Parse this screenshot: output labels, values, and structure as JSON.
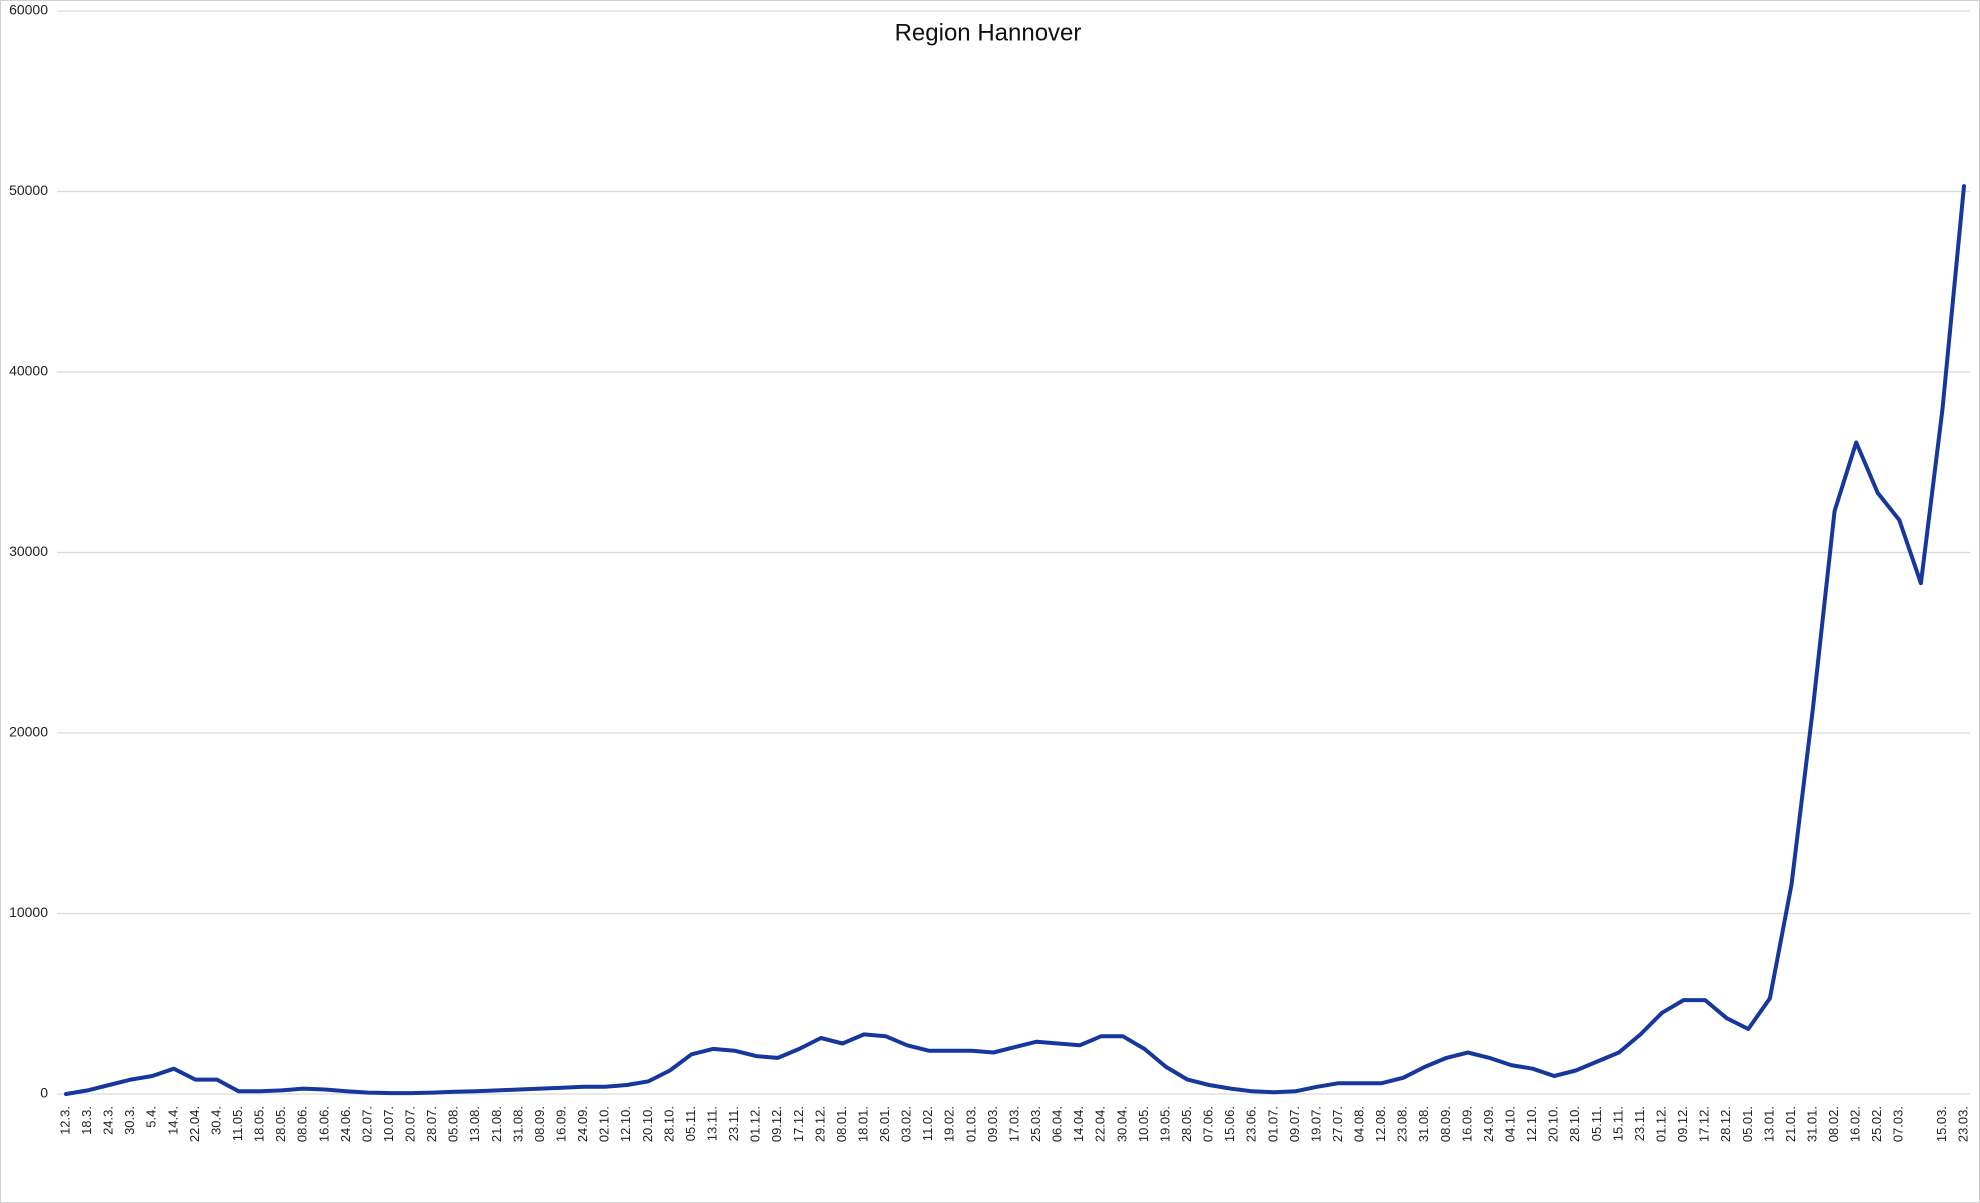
{
  "chart_data": {
    "type": "line",
    "title": "Region Hannover",
    "categories": [
      "12.3.",
      "18.3.",
      "24.3.",
      "30.3.",
      "5.4.",
      "14.4.",
      "22.04.",
      "30.4.",
      "11.05.",
      "18.05.",
      "28.05.",
      "08.06.",
      "16.06.",
      "24.06.",
      "02.07.",
      "10.07.",
      "20.07.",
      "28.07.",
      "05.08.",
      "13.08.",
      "21.08.",
      "31.08.",
      "08.09.",
      "16.09.",
      "24.09.",
      "02.10.",
      "12.10.",
      "20.10.",
      "28.10.",
      "05.11.",
      "13.11.",
      "23.11.",
      "01.12.",
      "09.12.",
      "17.12.",
      "29.12.",
      "08.01.",
      "18.01.",
      "26.01.",
      "03.02.",
      "11.02.",
      "19.02.",
      "01.03.",
      "09.03.",
      "17.03.",
      "25.03.",
      "06.04.",
      "14.04.",
      "22.04.",
      "30.04.",
      "10.05.",
      "19.05.",
      "28.05.",
      "07.06.",
      "15.06.",
      "23.06.",
      "01.07.",
      "09.07.",
      "19.07.",
      "27.07.",
      "04.08.",
      "12.08.",
      "23.08.",
      "31.08.",
      "08.09.",
      "16.09.",
      "24.09.",
      "04.10.",
      "12.10.",
      "20.10.",
      "28.10.",
      "05.11.",
      "15.11.",
      "23.11.",
      "01.12.",
      "09.12.",
      "17.12.",
      "28.12.",
      "05.01.",
      "13.01.",
      "21.01.",
      "31.01.",
      "08.02.",
      "16.02.",
      "25.02.",
      "07.03.",
      null,
      "15.03.",
      "23.03."
    ],
    "values": [
      0,
      200,
      500,
      800,
      1000,
      1400,
      800,
      800,
      150,
      150,
      200,
      300,
      250,
      150,
      80,
      50,
      50,
      80,
      120,
      150,
      200,
      250,
      300,
      350,
      400,
      400,
      500,
      700,
      1300,
      2200,
      2500,
      2400,
      2100,
      2000,
      2500,
      3100,
      2800,
      3300,
      3200,
      2700,
      2400,
      2400,
      2400,
      2300,
      2600,
      2900,
      2800,
      2700,
      3200,
      3200,
      2500,
      1500,
      800,
      500,
      300,
      150,
      100,
      150,
      400,
      600,
      600,
      600,
      900,
      1500,
      2000,
      2300,
      2000,
      1600,
      1400,
      1000,
      1300,
      1800,
      2300,
      3300,
      4500,
      5200,
      5200,
      4200,
      3600,
      5300,
      11600,
      21400,
      32300,
      36100,
      33300,
      31800,
      28300,
      37900,
      50300
    ],
    "color": "#16379b",
    "ylim": [
      0,
      60000
    ],
    "yticks": [
      0,
      10000,
      20000,
      30000,
      40000,
      50000,
      60000
    ],
    "grid": true
  }
}
